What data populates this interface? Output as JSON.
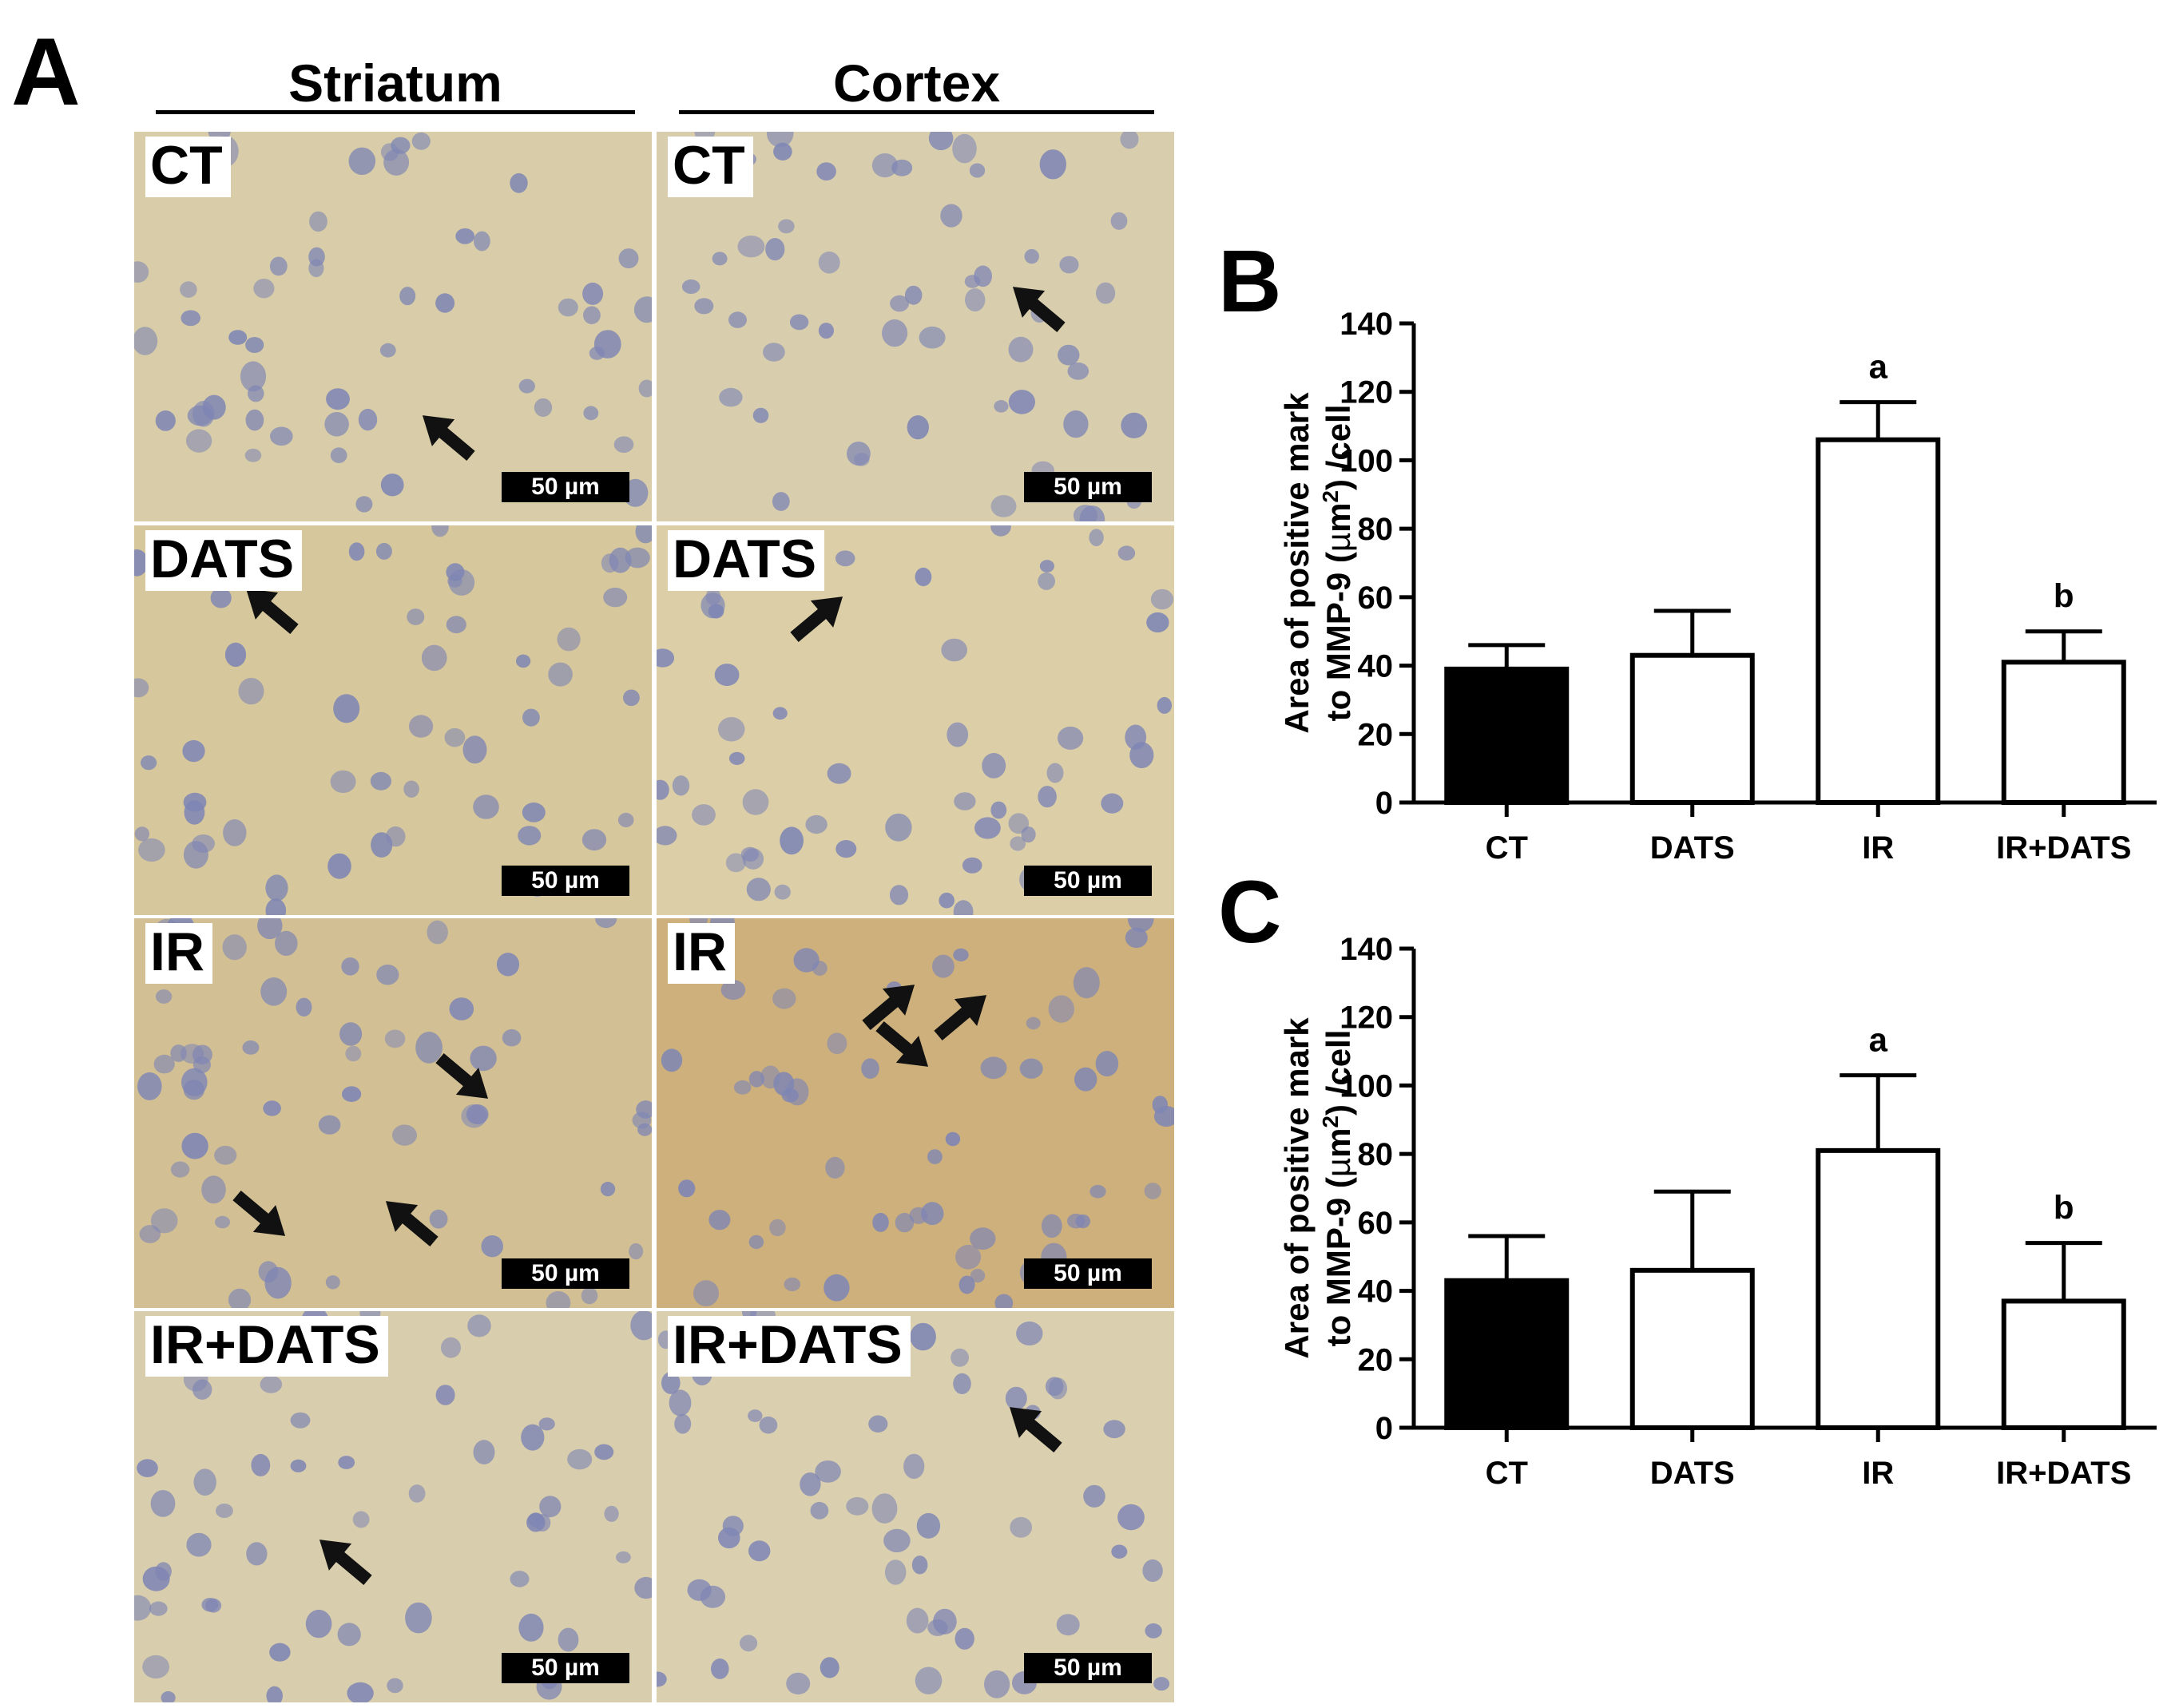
{
  "panel_a": {
    "letter": "A",
    "columns": [
      "Striatum",
      "Cortex"
    ],
    "rows": [
      "CT",
      "DATS",
      "IR",
      "IR+DATS"
    ],
    "scale_label": "50 µm",
    "arrow_color": "#111111",
    "stain_color": "#d4c39c",
    "nuclei_color": "#7f86b4"
  },
  "chart_data": [
    {
      "type": "bar",
      "panel_letter": "B",
      "categories": [
        "CT",
        "DATS",
        "IR",
        "IR+DATS"
      ],
      "values": [
        39,
        43,
        106,
        41
      ],
      "errors": [
        7,
        13,
        11,
        9
      ],
      "significance": [
        "",
        "",
        "a",
        "b"
      ],
      "fill": [
        "#000000",
        "#ffffff",
        "#ffffff",
        "#ffffff"
      ],
      "ylabel_line1": "Area of positive mark",
      "ylabel_line2_pre": "to MMP-9 (",
      "ylabel_mu": "µ",
      "ylabel_m": "m",
      "ylabel_sup": "2",
      "ylabel_line2_post": ") /cell",
      "ylim": [
        0,
        140
      ],
      "yticks": [
        0,
        20,
        40,
        60,
        80,
        100,
        120,
        140
      ],
      "grid": false
    },
    {
      "type": "bar",
      "panel_letter": "C",
      "categories": [
        "CT",
        "DATS",
        "IR",
        "IR+DATS"
      ],
      "values": [
        43,
        46,
        81,
        37
      ],
      "errors": [
        13,
        23,
        22,
        17
      ],
      "significance": [
        "",
        "",
        "a",
        "b"
      ],
      "fill": [
        "#000000",
        "#ffffff",
        "#ffffff",
        "#ffffff"
      ],
      "ylabel_line1": "Area of positive mark",
      "ylabel_line2_pre": "to MMP-9 (",
      "ylabel_mu": "µ",
      "ylabel_m": "m",
      "ylabel_sup": "2",
      "ylabel_line2_post": ") /cell",
      "ylim": [
        0,
        140
      ],
      "yticks": [
        0,
        20,
        40,
        60,
        80,
        100,
        120,
        140
      ],
      "grid": false
    }
  ]
}
